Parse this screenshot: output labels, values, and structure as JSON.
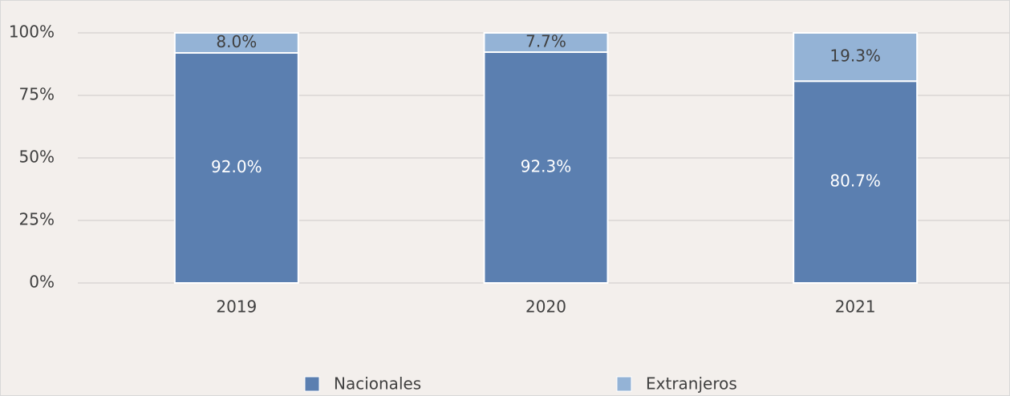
{
  "chart_data": {
    "type": "stacked_bar",
    "categories": [
      "2019",
      "2020",
      "2021"
    ],
    "series": [
      {
        "name": "Nacionales",
        "color": "#5b7fb0",
        "values": [
          92.0,
          92.3,
          80.7
        ],
        "value_labels": [
          "92.0%",
          "92.3%",
          "80.7%"
        ]
      },
      {
        "name": "Extranjeros",
        "color": "#94b3d6",
        "values": [
          8.0,
          7.7,
          19.3
        ],
        "value_labels": [
          "8.0%",
          "7.7%",
          "19.3%"
        ]
      }
    ],
    "ylim": [
      0,
      100
    ],
    "yticks": [
      {
        "value": 0,
        "label": "0%"
      },
      {
        "value": 25,
        "label": "25%"
      },
      {
        "value": 50,
        "label": "50%"
      },
      {
        "value": 75,
        "label": "75%"
      },
      {
        "value": 100,
        "label": "100%"
      }
    ],
    "grid": true
  }
}
